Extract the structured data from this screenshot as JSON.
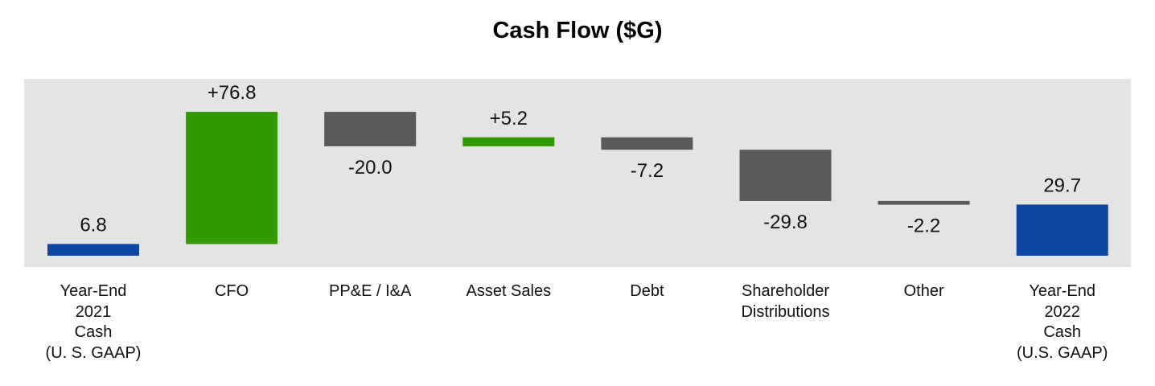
{
  "chart_data": {
    "type": "bar",
    "subtype": "waterfall",
    "title": "Cash Flow ($G)",
    "categories": [
      "Year-End\n2021\nCash\n(U. S. GAAP)",
      "CFO",
      "PP&E / I&A",
      "Asset Sales",
      "Debt",
      "Shareholder\nDistributions",
      "Other",
      "Year-End\n2022\nCash\n(U.S. GAAP)"
    ],
    "values": [
      6.8,
      76.8,
      -20.0,
      5.2,
      -7.2,
      -29.8,
      -2.2,
      29.7
    ],
    "kinds": [
      "total",
      "delta",
      "delta",
      "delta",
      "delta",
      "delta",
      "delta",
      "total"
    ],
    "data_labels": [
      "6.8",
      "+76.8",
      "-20.0",
      "+5.2",
      "-7.2",
      "-29.8",
      "-2.2",
      "29.7"
    ],
    "colors": {
      "total": "#0d47a1",
      "increase": "#339900",
      "decrease": "#5a5a5a",
      "plot_background": "#e4e4e4"
    },
    "grid": false,
    "legend": "none"
  }
}
